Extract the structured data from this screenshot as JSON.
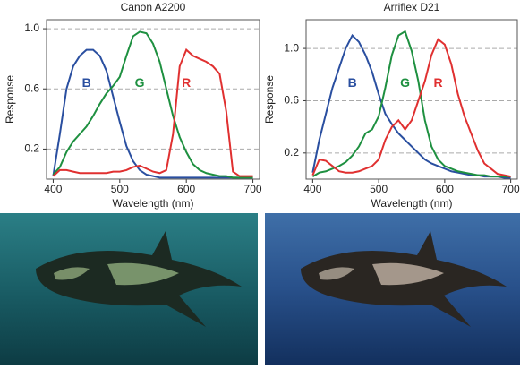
{
  "chart_data": [
    {
      "type": "line",
      "title": "Canon A2200",
      "x_label": "Wavelength (nm)",
      "y_label": "Response",
      "x": [
        400,
        410,
        420,
        430,
        440,
        450,
        460,
        470,
        480,
        490,
        500,
        510,
        520,
        530,
        540,
        550,
        560,
        570,
        580,
        590,
        600,
        610,
        620,
        630,
        640,
        650,
        660,
        670,
        680,
        690,
        700
      ],
      "series": [
        {
          "name": "B",
          "color": "#2a4fa0",
          "values": [
            0.02,
            0.3,
            0.6,
            0.75,
            0.82,
            0.86,
            0.86,
            0.82,
            0.72,
            0.55,
            0.38,
            0.22,
            0.12,
            0.06,
            0.03,
            0.02,
            0.01,
            0.01,
            0.01,
            0.01,
            0.01,
            0.01,
            0.01,
            0.01,
            0.01,
            0.01,
            0.01,
            0.01,
            0.01,
            0.01,
            0.01
          ]
        },
        {
          "name": "G",
          "color": "#1e9040",
          "values": [
            0.03,
            0.08,
            0.18,
            0.25,
            0.3,
            0.35,
            0.42,
            0.5,
            0.57,
            0.62,
            0.68,
            0.82,
            0.95,
            0.98,
            0.97,
            0.9,
            0.78,
            0.6,
            0.42,
            0.28,
            0.18,
            0.1,
            0.06,
            0.04,
            0.03,
            0.02,
            0.02,
            0.01,
            0.01,
            0.01,
            0.01
          ]
        },
        {
          "name": "R",
          "color": "#e03030",
          "values": [
            0.02,
            0.06,
            0.06,
            0.05,
            0.04,
            0.04,
            0.04,
            0.04,
            0.04,
            0.05,
            0.05,
            0.06,
            0.08,
            0.09,
            0.07,
            0.05,
            0.04,
            0.06,
            0.3,
            0.75,
            0.86,
            0.82,
            0.8,
            0.78,
            0.75,
            0.7,
            0.45,
            0.05,
            0.02,
            0.02,
            0.02
          ]
        }
      ],
      "xlim": [
        390,
        710
      ],
      "xticks": [
        400,
        500,
        600,
        700
      ],
      "ylim": [
        0,
        1.06
      ],
      "yticks": [
        0.2,
        0.6,
        {
          "value": 1,
          "label": "1.0"
        }
      ],
      "grid": true
    },
    {
      "type": "line",
      "title": "Arriflex D21",
      "x_label": "Wavelength (nm)",
      "y_label": "Response",
      "x": [
        400,
        410,
        420,
        430,
        440,
        450,
        460,
        470,
        480,
        490,
        500,
        510,
        520,
        530,
        540,
        550,
        560,
        570,
        580,
        590,
        600,
        610,
        620,
        630,
        640,
        650,
        660,
        670,
        680,
        690,
        700
      ],
      "series": [
        {
          "name": "B",
          "color": "#2a4fa0",
          "values": [
            0.05,
            0.3,
            0.5,
            0.7,
            0.85,
            1.0,
            1.1,
            1.05,
            0.95,
            0.82,
            0.65,
            0.5,
            0.42,
            0.35,
            0.3,
            0.25,
            0.2,
            0.15,
            0.12,
            0.1,
            0.08,
            0.06,
            0.05,
            0.04,
            0.03,
            0.03,
            0.02,
            0.02,
            0.02,
            0.01,
            0.01
          ]
        },
        {
          "name": "G",
          "color": "#1e9040",
          "values": [
            0.02,
            0.05,
            0.06,
            0.08,
            0.1,
            0.13,
            0.18,
            0.25,
            0.35,
            0.38,
            0.48,
            0.7,
            0.95,
            1.1,
            1.13,
            0.98,
            0.75,
            0.45,
            0.25,
            0.15,
            0.1,
            0.08,
            0.06,
            0.05,
            0.04,
            0.03,
            0.03,
            0.02,
            0.02,
            0.02,
            0.02
          ]
        },
        {
          "name": "R",
          "color": "#e03030",
          "values": [
            0.03,
            0.15,
            0.14,
            0.1,
            0.06,
            0.05,
            0.05,
            0.06,
            0.08,
            0.1,
            0.15,
            0.3,
            0.4,
            0.45,
            0.38,
            0.45,
            0.6,
            0.75,
            0.95,
            1.07,
            1.03,
            0.88,
            0.65,
            0.48,
            0.35,
            0.22,
            0.12,
            0.08,
            0.04,
            0.03,
            0.02
          ]
        }
      ],
      "xlim": [
        390,
        710
      ],
      "xticks": [
        400,
        500,
        600,
        700
      ],
      "ylim": [
        0,
        1.22
      ],
      "yticks": [
        0.2,
        0.6,
        {
          "value": 1,
          "label": "1.0"
        }
      ],
      "grid": true
    }
  ]
}
